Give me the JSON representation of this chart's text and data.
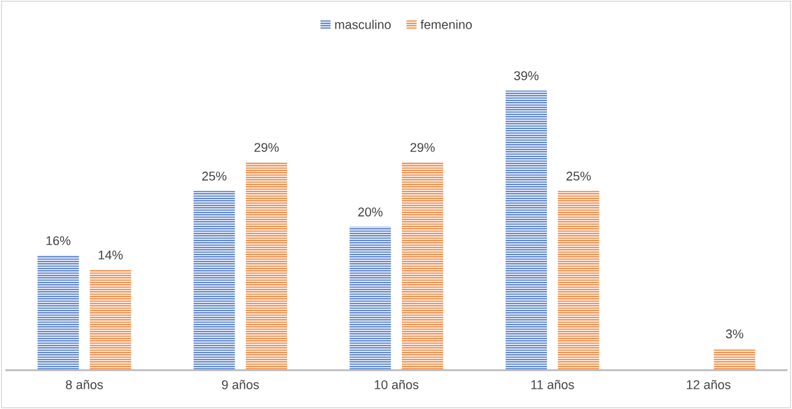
{
  "chart_data": {
    "type": "bar",
    "categories": [
      "8 años",
      "9 años",
      "10 años",
      "11 años",
      "12 años"
    ],
    "series": [
      {
        "name": "masculino",
        "color": "#4472c4",
        "values": [
          16,
          25,
          20,
          39,
          null
        ],
        "value_labels": [
          "16%",
          "25%",
          "20%",
          "39%",
          null
        ]
      },
      {
        "name": "femenino",
        "color": "#ed7d31",
        "values": [
          14,
          29,
          29,
          25,
          3
        ],
        "value_labels": [
          "14%",
          "29%",
          "29%",
          "25%",
          "3%"
        ]
      }
    ],
    "legend": "top",
    "grid": false,
    "tick_labels": "x"
  }
}
